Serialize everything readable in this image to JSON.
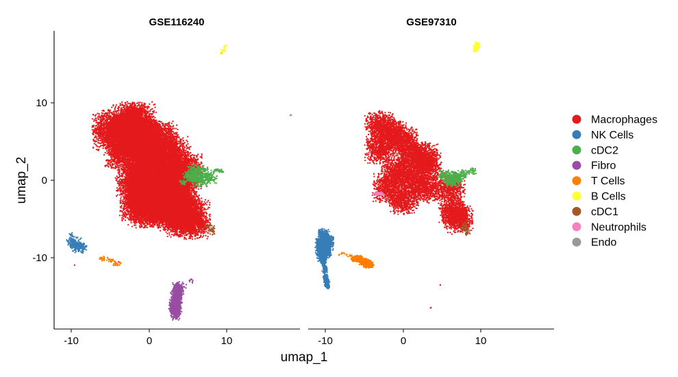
{
  "chart_data": {
    "type": "scatter",
    "xlabel": "umap_1",
    "ylabel": "umap_2",
    "xlim": [
      -12,
      20
    ],
    "ylim": [
      -19,
      19
    ],
    "x_ticks": [
      -10,
      0,
      10
    ],
    "y_ticks": [
      -10,
      0,
      10
    ],
    "grid": false,
    "legend_position": "right",
    "panels": [
      "GSE116240",
      "GSE97310"
    ],
    "series": [
      {
        "name": "Macrophages",
        "color": "#E41A1C"
      },
      {
        "name": "NK Cells",
        "color": "#377EB8"
      },
      {
        "name": "cDC2",
        "color": "#4DAF4A"
      },
      {
        "name": "Fibro",
        "color": "#984EA3"
      },
      {
        "name": "T Cells",
        "color": "#FF7F00"
      },
      {
        "name": "B Cells",
        "color": "#FFFF33"
      },
      {
        "name": "cDC1",
        "color": "#A65628"
      },
      {
        "name": "Neutrophils",
        "color": "#F781BF"
      },
      {
        "name": "Endo",
        "color": "#999999"
      }
    ],
    "clusters": {
      "GSE116240": [
        {
          "series": "Macrophages",
          "points": [
            [
              -4.5,
              6.5
            ],
            [
              -2,
              7.5
            ],
            [
              -3,
              4
            ],
            [
              -1,
              5
            ],
            [
              1,
              5
            ],
            [
              2.5,
              3
            ],
            [
              0,
              2
            ],
            [
              -1.5,
              0
            ],
            [
              0.5,
              0
            ],
            [
              2,
              -1
            ],
            [
              4,
              1
            ],
            [
              -0.5,
              -2
            ],
            [
              1.5,
              -2
            ],
            [
              0,
              -3.5
            ],
            [
              2,
              -3.5
            ],
            [
              3.5,
              -1
            ],
            [
              4,
              -4
            ],
            [
              5,
              -5
            ],
            [
              -1,
              -3
            ]
          ],
          "spread": [
            1.3,
            1.2
          ],
          "count": 1800
        },
        {
          "series": "Macrophages",
          "points": [
            [
              -3.8,
              7
            ],
            [
              -2,
              8.2
            ],
            [
              -0.5,
              7
            ],
            [
              -3,
              5.5
            ]
          ],
          "spread": [
            0.8,
            0.6
          ],
          "count": 400
        },
        {
          "series": "Macrophages",
          "points": [
            [
              5.2,
              -2.8
            ],
            [
              6,
              -5
            ],
            [
              6.7,
              -5.6
            ]
          ],
          "spread": [
            0.3,
            0.35
          ],
          "count": 80
        },
        {
          "series": "Macrophages",
          "points": [
            [
              9.3,
              16.4
            ],
            [
              -9.5,
              -11
            ],
            [
              -6,
              -10.1
            ],
            [
              -4,
              -10.6
            ],
            [
              8.3,
              -6.6
            ]
          ],
          "spread": [
            0.06,
            0.06
          ],
          "count": 1
        },
        {
          "series": "cDC2",
          "points": [
            [
              5.5,
              0.5
            ],
            [
              6.5,
              0
            ],
            [
              7.5,
              0.3
            ],
            [
              6,
              1.2
            ]
          ],
          "spread": [
            0.55,
            0.4
          ],
          "count": 150
        },
        {
          "series": "cDC2",
          "points": [
            [
              8.5,
              1.3
            ],
            [
              9.2,
              1.1
            ],
            [
              4.3,
              -0.3
            ],
            [
              7.2,
              1.4
            ]
          ],
          "spread": [
            0.25,
            0.15
          ],
          "count": 20
        },
        {
          "series": "cDC1",
          "points": [
            [
              8.2,
              -6.4
            ],
            [
              7.8,
              -6.1
            ]
          ],
          "spread": [
            0.28,
            0.32
          ],
          "count": 28
        },
        {
          "series": "NK Cells",
          "points": [
            [
              -10,
              -7.8
            ],
            [
              -9.6,
              -8.5
            ],
            [
              -9.3,
              -8.2
            ],
            [
              -8.6,
              -8.8
            ]
          ],
          "spread": [
            0.3,
            0.4
          ],
          "count": 60
        },
        {
          "series": "NK Cells",
          "points": [
            [
              -10,
              -7
            ]
          ],
          "spread": [
            0.06,
            0.1
          ],
          "count": 4
        },
        {
          "series": "T Cells",
          "points": [
            [
              -6,
              -10.1
            ],
            [
              -5,
              -10.3
            ],
            [
              -4.2,
              -10.8
            ]
          ],
          "spread": [
            0.3,
            0.15
          ],
          "count": 22
        },
        {
          "series": "Fibro",
          "points": [
            [
              3.7,
              -14.2
            ],
            [
              3.5,
              -15.2
            ],
            [
              3.3,
              -16.3
            ],
            [
              3.4,
              -17
            ]
          ],
          "spread": [
            0.35,
            0.5
          ],
          "count": 260
        },
        {
          "series": "Fibro",
          "points": [
            [
              4.3,
              -13.5
            ],
            [
              5.4,
              -13
            ]
          ],
          "spread": [
            0.25,
            0.2
          ],
          "count": 8
        },
        {
          "series": "B Cells",
          "points": [
            [
              9.6,
              16.8
            ],
            [
              9.7,
              17.3
            ],
            [
              9.4,
              16.6
            ]
          ],
          "spread": [
            0.1,
            0.2
          ],
          "count": 10
        },
        {
          "series": "Neutrophils",
          "points": [
            [
              -3.3,
              -1.9
            ]
          ],
          "spread": [
            0.12,
            0.05
          ],
          "count": 5
        },
        {
          "series": "Endo",
          "points": [
            [
              18.2,
              8.4
            ]
          ],
          "spread": [
            0.08,
            0.05
          ],
          "count": 5
        }
      ],
      "GSE97310": [
        {
          "series": "Macrophages",
          "points": [
            [
              -3,
              7
            ],
            [
              -1.5,
              6
            ],
            [
              -3,
              4
            ],
            [
              0,
              5
            ],
            [
              1,
              3
            ],
            [
              2.5,
              3
            ],
            [
              -1,
              1
            ],
            [
              1,
              0
            ],
            [
              3,
              2
            ],
            [
              -2,
              -1
            ],
            [
              0,
              -2.5
            ],
            [
              3,
              -1
            ],
            [
              6,
              -1
            ],
            [
              6.5,
              -4
            ],
            [
              7,
              -5
            ]
          ],
          "spread": [
            0.9,
            0.9
          ],
          "count": 650
        },
        {
          "series": "Macrophages",
          "points": [
            [
              7.5,
              -5
            ],
            [
              6.2,
              -3.8
            ]
          ],
          "spread": [
            0.3,
            0.3
          ],
          "count": 12
        },
        {
          "series": "cDC2",
          "points": [
            [
              5.5,
              0.6
            ],
            [
              6.5,
              0.3
            ],
            [
              7.2,
              0.6
            ],
            [
              6.3,
              -0.2
            ]
          ],
          "spread": [
            0.5,
            0.35
          ],
          "count": 110
        },
        {
          "series": "cDC2",
          "points": [
            [
              8.8,
              1.3
            ],
            [
              9.1,
              1.1
            ],
            [
              8.2,
              1
            ]
          ],
          "spread": [
            0.2,
            0.15
          ],
          "count": 14
        },
        {
          "series": "cDC1",
          "points": [
            [
              8.0,
              -6.2
            ],
            [
              7.8,
              -6
            ],
            [
              8.2,
              -6.7
            ]
          ],
          "spread": [
            0.22,
            0.28
          ],
          "count": 26
        },
        {
          "series": "NK Cells",
          "points": [
            [
              -10.3,
              -7.3
            ],
            [
              -10.6,
              -8.5
            ],
            [
              -10.4,
              -9.5
            ],
            [
              -10,
              -9
            ],
            [
              -9.7,
              -8
            ]
          ],
          "spread": [
            0.35,
            0.5
          ],
          "count": 340
        },
        {
          "series": "NK Cells",
          "points": [
            [
              -10.3,
              -10.5
            ],
            [
              -10.1,
              -11.5
            ],
            [
              -10,
              -12.6
            ],
            [
              -9.8,
              -13.4
            ]
          ],
          "spread": [
            0.16,
            0.3
          ],
          "count": 90
        },
        {
          "series": "T Cells",
          "points": [
            [
              -6,
              -10.1
            ],
            [
              -5,
              -10.5
            ],
            [
              -4.5,
              -10.9
            ]
          ],
          "spread": [
            0.35,
            0.2
          ],
          "count": 220
        },
        {
          "series": "T Cells",
          "points": [
            [
              -8,
              -9.5
            ],
            [
              -7,
              -9.7
            ]
          ],
          "spread": [
            0.25,
            0.1
          ],
          "count": 8
        },
        {
          "series": "B Cells",
          "points": [
            [
              9.3,
              17
            ],
            [
              9.5,
              17.4
            ]
          ],
          "spread": [
            0.14,
            0.25
          ],
          "count": 80
        },
        {
          "series": "Neutrophils",
          "points": [
            [
              -3.4,
              -1.8
            ],
            [
              -3.1,
              -1.7
            ]
          ],
          "spread": [
            0.3,
            0.1
          ],
          "count": 30
        },
        {
          "series": "Macrophages",
          "points": [
            [
              4.8,
              -13.5
            ],
            [
              3.5,
              -16.5
            ]
          ],
          "spread": [
            0.05,
            0.05
          ],
          "count": 2
        }
      ]
    }
  },
  "panels": [
    {
      "title": "GSE116240"
    },
    {
      "title": "GSE97310"
    }
  ],
  "axes": {
    "x_title": "umap_1",
    "y_title": "umap_2",
    "x_tick_labels": [
      "-10",
      "0",
      "10"
    ],
    "y_tick_labels": [
      "10",
      "0",
      "-10"
    ]
  },
  "legend": {
    "items": [
      {
        "label": "Macrophages",
        "color": "#E41A1C"
      },
      {
        "label": "NK Cells",
        "color": "#377EB8"
      },
      {
        "label": "cDC2",
        "color": "#4DAF4A"
      },
      {
        "label": "Fibro",
        "color": "#984EA3"
      },
      {
        "label": "T Cells",
        "color": "#FF7F00"
      },
      {
        "label": "B Cells",
        "color": "#FFFF33"
      },
      {
        "label": "cDC1",
        "color": "#A65628"
      },
      {
        "label": "Neutrophils",
        "color": "#F781BF"
      },
      {
        "label": "Endo",
        "color": "#999999"
      }
    ]
  }
}
